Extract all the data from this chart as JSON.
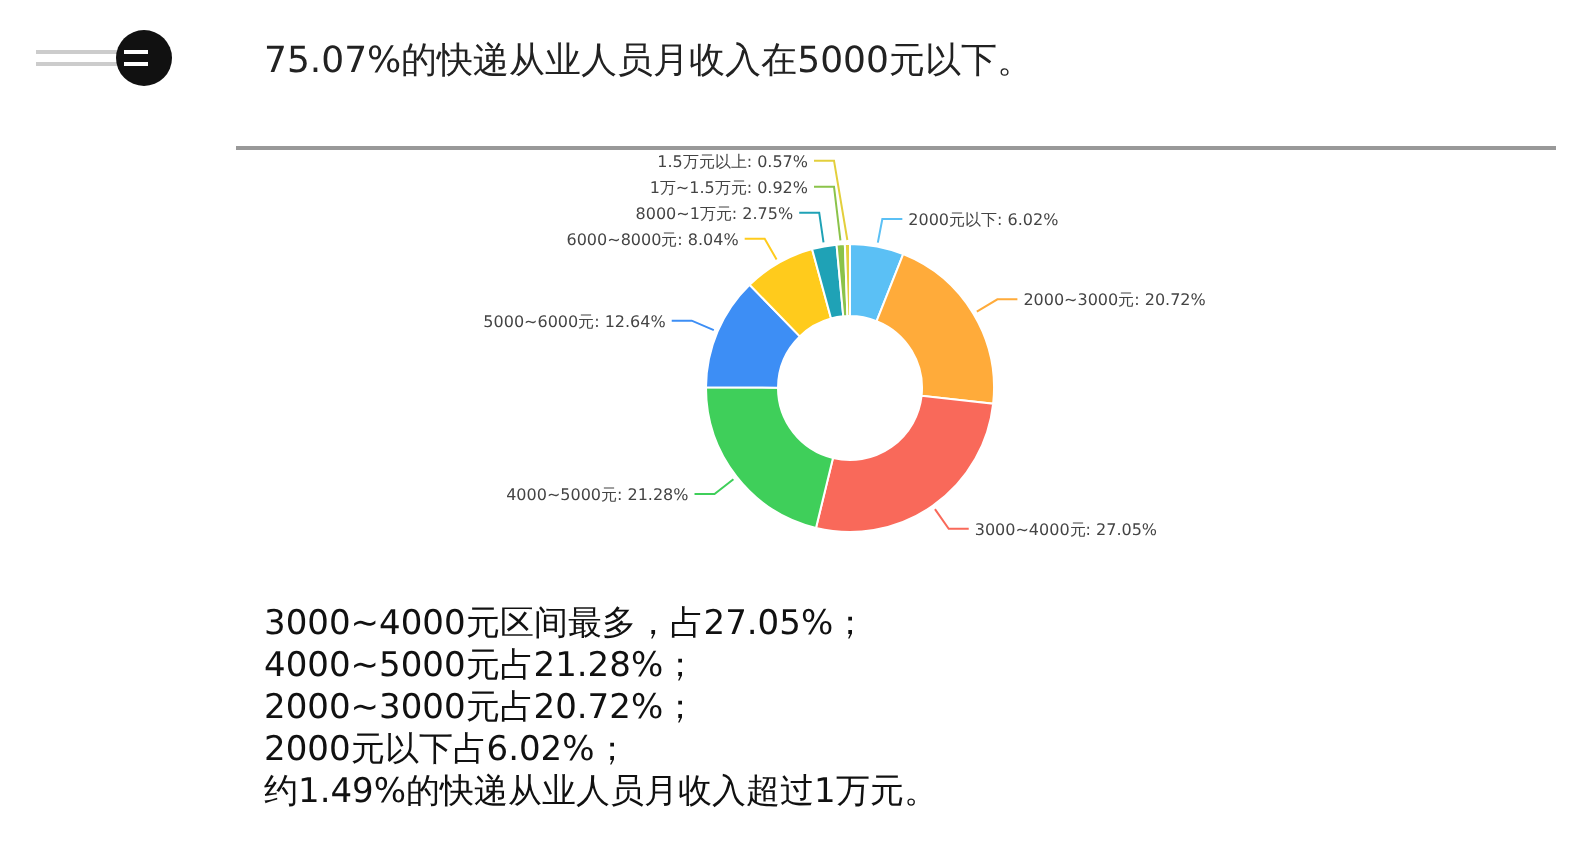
{
  "chart_data": {
    "type": "donut",
    "title": "75.07%的快递从业人员月收入在5000元以下。",
    "categories": [
      "2000元以下",
      "2000~3000元",
      "3000~4000元",
      "4000~5000元",
      "5000~6000元",
      "6000~8000元",
      "8000~1万元",
      "1万~1.5万元",
      "1.5万元以上"
    ],
    "values": [
      6.02,
      20.72,
      27.05,
      21.28,
      12.64,
      8.04,
      2.75,
      0.92,
      0.57
    ],
    "colors": [
      "#5bc0f5",
      "#ffab3a",
      "#f9695a",
      "#3fcf5a",
      "#3d8ef5",
      "#ffcb1c",
      "#1fa2b6",
      "#8bc34a",
      "#e3cf3c"
    ],
    "value_labels": [
      "6.02%",
      "20.72%",
      "27.05%",
      "21.28%",
      "12.64%",
      "8.04%",
      "2.75%",
      "0.92%",
      "0.57%"
    ],
    "annotations": [
      "3000~4000元区间最多，占27.05%；",
      "4000~5000元占21.28%；",
      "2000~3000元占20.72%；",
      "2000元以下占6.02%；",
      "约1.49%的快递从业人员月收入超过1万元。"
    ]
  }
}
